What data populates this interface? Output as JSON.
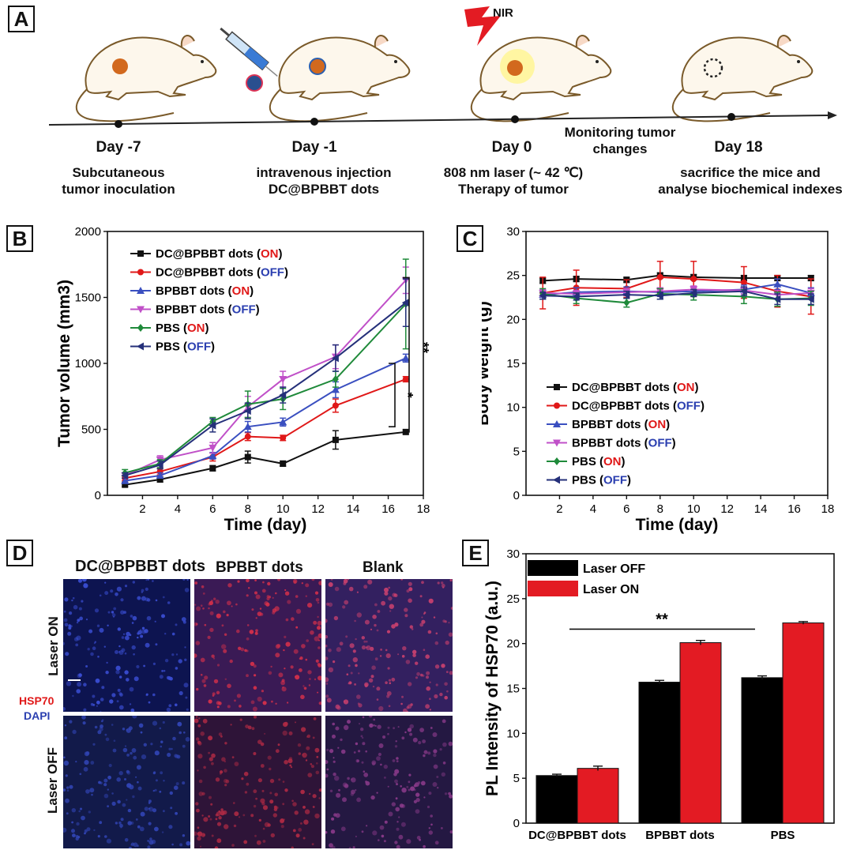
{
  "panels": {
    "a": "A",
    "b": "B",
    "c": "C",
    "d": "D",
    "e": "E"
  },
  "timeline": {
    "nir": "NIR",
    "events": [
      {
        "day": "Day -7",
        "line1": "Subcutaneous",
        "line2": "tumor inoculation"
      },
      {
        "day": "Day -1",
        "line1": "intravenous injection",
        "line2": "DC@BPBBT dots"
      },
      {
        "day": "Day 0",
        "line1": "808 nm laser (~ 42 ℃)",
        "line2": "Therapy of tumor"
      },
      {
        "day": "Day 18",
        "line1": "sacrifice the mice and",
        "line2": "analyse biochemical indexes"
      }
    ],
    "monitor1": "Monitoring tumor",
    "monitor2": "changes"
  },
  "legend_entries": [
    {
      "name": "DC@BPBBT dots",
      "state": "ON",
      "color": "#111111",
      "state_color": "#e01818",
      "marker": "square"
    },
    {
      "name": "DC@BPBBT dots",
      "state": "OFF",
      "color": "#e01818",
      "state_color": "#2b3fb0",
      "marker": "circle"
    },
    {
      "name": "BPBBT dots",
      "state": "ON",
      "color": "#3a4fc0",
      "state_color": "#e01818",
      "marker": "triangle"
    },
    {
      "name": "BPBBT dots",
      "state": "OFF",
      "color": "#c050c8",
      "state_color": "#2b3fb0",
      "marker": "tri-down"
    },
    {
      "name": "PBS",
      "state": "ON",
      "color": "#1f8a3a",
      "state_color": "#e01818",
      "marker": "diamond"
    },
    {
      "name": "PBS",
      "state": "OFF",
      "color": "#25307a",
      "state_color": "#2b3fb0",
      "marker": "tri-left"
    }
  ],
  "chart_data": [
    {
      "panel": "B",
      "type": "line",
      "xlabel": "Time (day)",
      "ylabel": "Tumor volume (mm3)",
      "xlim": [
        0,
        18
      ],
      "ylim": [
        0,
        2000
      ],
      "xticks": [
        2,
        4,
        6,
        8,
        10,
        12,
        14,
        16,
        18
      ],
      "yticks": [
        0,
        500,
        1000,
        1500,
        2000
      ],
      "x": [
        1,
        3,
        6,
        8,
        10,
        13,
        17
      ],
      "series": [
        {
          "name": "DC@BPBBT dots (ON)",
          "values": [
            80,
            120,
            205,
            290,
            240,
            420,
            480
          ],
          "err": [
            15,
            20,
            20,
            45,
            20,
            70,
            15
          ]
        },
        {
          "name": "DC@BPBBT dots (OFF)",
          "values": [
            130,
            180,
            290,
            445,
            435,
            680,
            880
          ],
          "err": [
            20,
            25,
            30,
            30,
            20,
            50,
            20
          ]
        },
        {
          "name": "BPBBT dots (ON)",
          "values": [
            110,
            150,
            300,
            520,
            555,
            800,
            1040
          ],
          "err": [
            20,
            20,
            25,
            40,
            30,
            60,
            30
          ]
        },
        {
          "name": "BPBBT dots (OFF)",
          "values": [
            150,
            270,
            360,
            670,
            880,
            1050,
            1630
          ],
          "err": [
            20,
            30,
            40,
            80,
            60,
            90,
            100
          ]
        },
        {
          "name": "PBS (ON)",
          "values": [
            170,
            240,
            560,
            690,
            730,
            880,
            1450
          ],
          "err": [
            25,
            30,
            30,
            100,
            80,
            60,
            340
          ]
        },
        {
          "name": "PBS (OFF)",
          "values": [
            150,
            230,
            530,
            640,
            760,
            1040,
            1460
          ],
          "err": [
            20,
            30,
            50,
            60,
            60,
            100,
            180
          ]
        }
      ],
      "annotations": [
        "**",
        "*"
      ]
    },
    {
      "panel": "C",
      "type": "line",
      "xlabel": "Time (day)",
      "ylabel": "Body weight (g)",
      "xlim": [
        0,
        18
      ],
      "ylim": [
        0,
        30
      ],
      "xticks": [
        2,
        4,
        6,
        8,
        10,
        12,
        14,
        16,
        18
      ],
      "yticks": [
        0,
        5,
        10,
        15,
        20,
        25,
        30
      ],
      "x": [
        1,
        3,
        6,
        8,
        10,
        13,
        15,
        17
      ],
      "series": [
        {
          "name": "DC@BPBBT dots (ON)",
          "values": [
            24.4,
            24.6,
            24.5,
            25.0,
            24.8,
            24.7,
            24.7,
            24.7
          ],
          "err": [
            0.3,
            0.3,
            0.3,
            0.3,
            0.3,
            0.3,
            0.3,
            0.3
          ]
        },
        {
          "name": "DC@BPBBT dots (OFF)",
          "values": [
            23.0,
            23.6,
            23.5,
            24.8,
            24.6,
            24.2,
            23.2,
            22.6
          ],
          "err": [
            1.8,
            2.0,
            1.0,
            1.8,
            2.0,
            1.8,
            1.8,
            2.0
          ]
        },
        {
          "name": "BPBBT dots (ON)",
          "values": [
            22.8,
            23.1,
            23.2,
            23.1,
            23.2,
            23.4,
            24.0,
            23.0
          ],
          "err": [
            0.5,
            0.5,
            0.5,
            0.5,
            0.5,
            0.5,
            0.6,
            0.6
          ]
        },
        {
          "name": "BPBBT dots (OFF)",
          "values": [
            23.0,
            22.9,
            23.1,
            23.2,
            23.4,
            23.3,
            22.8,
            23.0
          ],
          "err": [
            0.4,
            0.4,
            0.4,
            0.4,
            0.4,
            0.4,
            0.5,
            0.5
          ]
        },
        {
          "name": "PBS (ON)",
          "values": [
            22.9,
            22.4,
            21.9,
            22.9,
            22.8,
            22.6,
            22.3,
            22.4
          ],
          "err": [
            0.6,
            0.6,
            0.5,
            0.6,
            0.6,
            0.8,
            0.8,
            0.8
          ]
        },
        {
          "name": "PBS (OFF)",
          "values": [
            22.7,
            22.6,
            22.8,
            22.7,
            23.0,
            23.2,
            22.3,
            22.3
          ],
          "err": [
            0.4,
            0.4,
            0.4,
            0.4,
            0.4,
            0.5,
            0.6,
            0.6
          ]
        }
      ]
    },
    {
      "panel": "E",
      "type": "bar",
      "ylabel": "PL Intensity of HSP70 (a.u.)",
      "ylim": [
        0,
        30
      ],
      "yticks": [
        0,
        5,
        10,
        15,
        20,
        25,
        30
      ],
      "categories": [
        "DC@BPBBT dots",
        "BPBBT  dots",
        "PBS"
      ],
      "series": [
        {
          "name": "Laser OFF",
          "color": "#000000",
          "values": [
            5.3,
            15.7,
            16.2
          ],
          "err": [
            0.15,
            0.2,
            0.2
          ]
        },
        {
          "name": "Laser ON",
          "color": "#e31b23",
          "values": [
            6.1,
            20.1,
            22.3
          ],
          "err": [
            0.25,
            0.25,
            0.15
          ]
        }
      ],
      "annotations": [
        "**"
      ]
    }
  ],
  "microscopy": {
    "columns": [
      "DC@BPBBT dots",
      "BPBBT dots",
      "Blank"
    ],
    "rows": [
      "Laser ON",
      "Laser OFF"
    ],
    "stain1": "HSP70",
    "stain2": "DAPI",
    "stain1_color": "#e01818",
    "stain2_color": "#2b3fb0"
  }
}
